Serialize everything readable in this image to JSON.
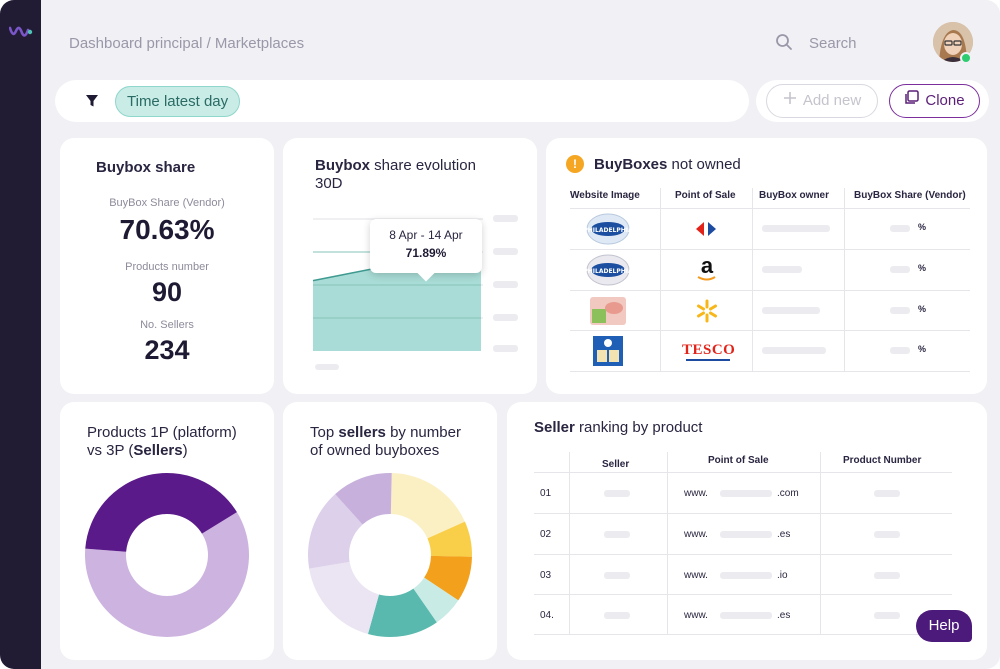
{
  "header": {
    "breadcrumb": "Dashboard principal / Marketplaces",
    "search_label": "Search"
  },
  "filter": {
    "chip_label": "Time latest day"
  },
  "actions": {
    "add_label": "Add new",
    "clone_label": "Clone"
  },
  "buybox_share": {
    "title": "Buybox share",
    "share_label": "BuyBox Share (Vendor)",
    "share_value": "70.63%",
    "products_label": "Products number",
    "products_value": "90",
    "sellers_label": "No. Sellers",
    "sellers_value": "234"
  },
  "evolution": {
    "title_bold": "Buybox",
    "title_rest": " share evolution",
    "title_line2": "30D",
    "tooltip_range": "8 Apr - 14 Apr",
    "tooltip_value": "71.89%"
  },
  "chart_data": {
    "type": "area",
    "series": [
      {
        "values": [
          0.62,
          0.65,
          0.68,
          0.72,
          0.73,
          0.73
        ]
      }
    ],
    "tooltip": {
      "label": "8 Apr - 14 Apr",
      "value": "71.89%"
    },
    "color": "#a9dcd6",
    "line_color": "#3f9a90"
  },
  "buyboxes_not_owned": {
    "title_bold": "BuyBoxes",
    "title_rest": " not owned",
    "columns": [
      "Website Image",
      "Point of Sale",
      "BuyBox owner",
      "BuyBox Share (Vendor)"
    ],
    "rows": [
      {
        "product": "Philadelphia",
        "pos": "carrefour-logo",
        "share_suffix": "%"
      },
      {
        "product": "Philadelphia",
        "pos": "amazon-logo",
        "pos_text": "a",
        "share_suffix": "%"
      },
      {
        "product": "ham-pack",
        "pos": "walmart-logo",
        "share_suffix": "%"
      },
      {
        "product": "blue-box",
        "pos": "tesco-logo",
        "pos_text": "TESCO",
        "share_suffix": "%"
      }
    ]
  },
  "products_1p3p": {
    "title_line1": "Products 1P (platform)",
    "title_line2_pre": "vs 3P (",
    "title_line2_bold": "Sellers",
    "title_line2_post": ")",
    "slices": [
      {
        "value": 0.6,
        "color": "#cdb3e0"
      },
      {
        "value": 0.4,
        "color": "#5a1a8a"
      }
    ]
  },
  "top_sellers": {
    "title_pre": "Top ",
    "title_bold": "sellers",
    "title_rest": " by number",
    "title_line2": "of owned buyboxes",
    "slices": [
      {
        "value": 0.18,
        "color": "#fbefc4"
      },
      {
        "value": 0.07,
        "color": "#f9cf4a"
      },
      {
        "value": 0.09,
        "color": "#f3a11c"
      },
      {
        "value": 0.06,
        "color": "#c9ebe6"
      },
      {
        "value": 0.14,
        "color": "#5ab9ae"
      },
      {
        "value": 0.18,
        "color": "#ebe4f2"
      },
      {
        "value": 0.16,
        "color": "#ddd0ea"
      },
      {
        "value": 0.12,
        "color": "#c7b0dc"
      }
    ]
  },
  "seller_ranking": {
    "title_bold": "Seller",
    "title_rest": " ranking by product",
    "columns": [
      "Seller",
      "Point of Sale",
      "Product Number"
    ],
    "rows": [
      {
        "rank": "01",
        "www": "www.",
        "tld": ".com"
      },
      {
        "rank": "02",
        "www": "www.",
        "tld": ".es"
      },
      {
        "rank": "03",
        "www": "www.",
        "tld": ".io"
      },
      {
        "rank": "04.",
        "www": "www.",
        "tld": ".es"
      }
    ]
  },
  "help": {
    "label": "Help"
  }
}
